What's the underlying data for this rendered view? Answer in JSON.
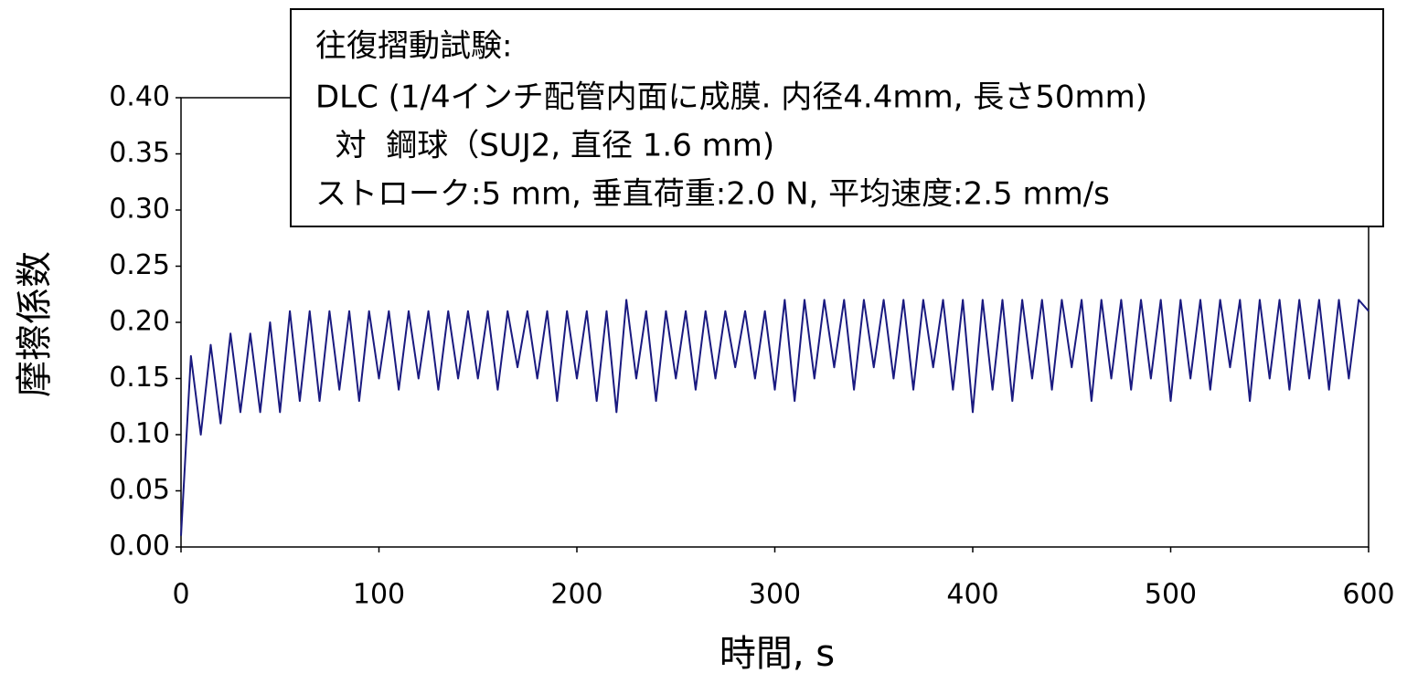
{
  "chart_data": {
    "type": "line",
    "x_label": "時間, s",
    "y_label": "摩擦係数",
    "annotation": [
      "往復摺動試験:",
      "DLC (1/4インチ配管内面に成膜. 内径4.4mm, 長さ50mm)",
      "  対  鋼球（SUJ2, 直径 1.6 mm)",
      "ストローク:5 mm, 垂直荷重:2.0 N, 平均速度:2.5 mm/s"
    ],
    "x": [
      0,
      5,
      10,
      15,
      20,
      25,
      30,
      35,
      40,
      45,
      50,
      55,
      60,
      65,
      70,
      75,
      80,
      85,
      90,
      95,
      100,
      105,
      110,
      115,
      120,
      125,
      130,
      135,
      140,
      145,
      150,
      155,
      160,
      165,
      170,
      175,
      180,
      185,
      190,
      195,
      200,
      205,
      210,
      215,
      220,
      225,
      230,
      235,
      240,
      245,
      250,
      255,
      260,
      265,
      270,
      275,
      280,
      285,
      290,
      295,
      300,
      305,
      310,
      315,
      320,
      325,
      330,
      335,
      340,
      345,
      350,
      355,
      360,
      365,
      370,
      375,
      380,
      385,
      390,
      395,
      400,
      405,
      410,
      415,
      420,
      425,
      430,
      435,
      440,
      445,
      450,
      455,
      460,
      465,
      470,
      475,
      480,
      485,
      490,
      495,
      500,
      505,
      510,
      515,
      520,
      525,
      530,
      535,
      540,
      545,
      550,
      555,
      560,
      565,
      570,
      575,
      580,
      585,
      590,
      595,
      600
    ],
    "series": [
      {
        "color": "#1a1a80",
        "values": [
          0.01,
          0.17,
          0.1,
          0.18,
          0.11,
          0.19,
          0.12,
          0.19,
          0.12,
          0.2,
          0.12,
          0.21,
          0.13,
          0.21,
          0.13,
          0.21,
          0.14,
          0.21,
          0.13,
          0.21,
          0.15,
          0.21,
          0.14,
          0.21,
          0.15,
          0.21,
          0.14,
          0.21,
          0.15,
          0.21,
          0.15,
          0.21,
          0.14,
          0.21,
          0.16,
          0.21,
          0.15,
          0.21,
          0.13,
          0.21,
          0.15,
          0.21,
          0.13,
          0.21,
          0.12,
          0.22,
          0.15,
          0.21,
          0.13,
          0.21,
          0.15,
          0.21,
          0.14,
          0.21,
          0.15,
          0.21,
          0.16,
          0.21,
          0.15,
          0.21,
          0.14,
          0.22,
          0.13,
          0.22,
          0.15,
          0.22,
          0.16,
          0.22,
          0.14,
          0.22,
          0.16,
          0.22,
          0.15,
          0.22,
          0.14,
          0.22,
          0.16,
          0.22,
          0.14,
          0.22,
          0.12,
          0.22,
          0.14,
          0.22,
          0.13,
          0.22,
          0.15,
          0.22,
          0.14,
          0.22,
          0.16,
          0.22,
          0.13,
          0.22,
          0.15,
          0.22,
          0.14,
          0.22,
          0.15,
          0.22,
          0.13,
          0.22,
          0.15,
          0.22,
          0.14,
          0.22,
          0.16,
          0.22,
          0.13,
          0.22,
          0.15,
          0.22,
          0.14,
          0.22,
          0.15,
          0.22,
          0.14,
          0.22,
          0.15,
          0.22,
          0.21
        ]
      }
    ],
    "xlim": [
      0,
      600
    ],
    "xticks": [
      0,
      100,
      200,
      300,
      400,
      500,
      600
    ],
    "ylim": [
      0,
      0.4
    ],
    "yticks": [
      {
        "value": 0,
        "label": "0.00"
      },
      0.05,
      {
        "value": 0.1,
        "label": "0.10"
      },
      0.15,
      {
        "value": 0.2,
        "label": "0.20"
      },
      0.25,
      {
        "value": 0.3,
        "label": "0.30"
      },
      0.35,
      {
        "value": 0.4,
        "label": "0.40"
      }
    ]
  }
}
